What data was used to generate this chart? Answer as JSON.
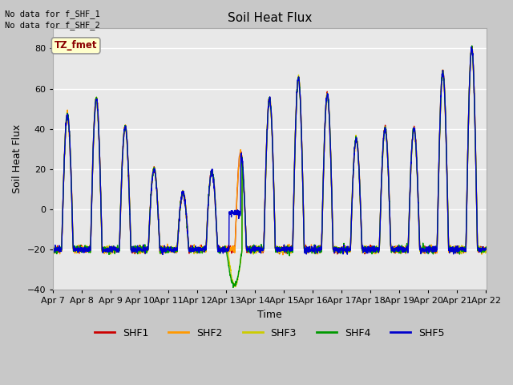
{
  "title": "Soil Heat Flux",
  "ylabel": "Soil Heat Flux",
  "xlabel": "Time",
  "figsize": [
    6.4,
    4.8
  ],
  "dpi": 100,
  "plot_bg_color": "#e8e8e8",
  "fig_bg_color": "#c8c8c8",
  "ylim": [
    -40,
    90
  ],
  "yticks": [
    -40,
    -20,
    0,
    20,
    40,
    60,
    80
  ],
  "annotation_lines": [
    "No data for f_SHF_1",
    "No data for f_SHF_2"
  ],
  "legend_box_label": "TZ_fmet",
  "legend_box_color": "#ffffcc",
  "legend_box_border": "#999999",
  "legend_box_text_color": "#8b0000",
  "series": {
    "SHF1": {
      "color": "#cc0000",
      "lw": 1.0
    },
    "SHF2": {
      "color": "#ff9900",
      "lw": 1.0
    },
    "SHF3": {
      "color": "#cccc00",
      "lw": 1.0
    },
    "SHF4": {
      "color": "#009900",
      "lw": 1.0
    },
    "SHF5": {
      "color": "#0000cc",
      "lw": 1.0
    }
  },
  "xtick_labels": [
    "Apr 7",
    "Apr 8",
    "Apr 9",
    "Apr 10",
    "Apr 11",
    "Apr 12",
    "Apr 13",
    "Apr 14",
    "Apr 15",
    "Apr 16",
    "Apr 17",
    "Apr 18",
    "Apr 19",
    "Apr 20",
    "Apr 21",
    "Apr 22"
  ],
  "day_peaks": [
    47,
    55,
    41,
    20,
    8,
    19,
    28,
    55,
    65,
    57,
    35,
    40,
    40,
    68,
    80
  ],
  "night_base": -20,
  "num_pts": 2160
}
